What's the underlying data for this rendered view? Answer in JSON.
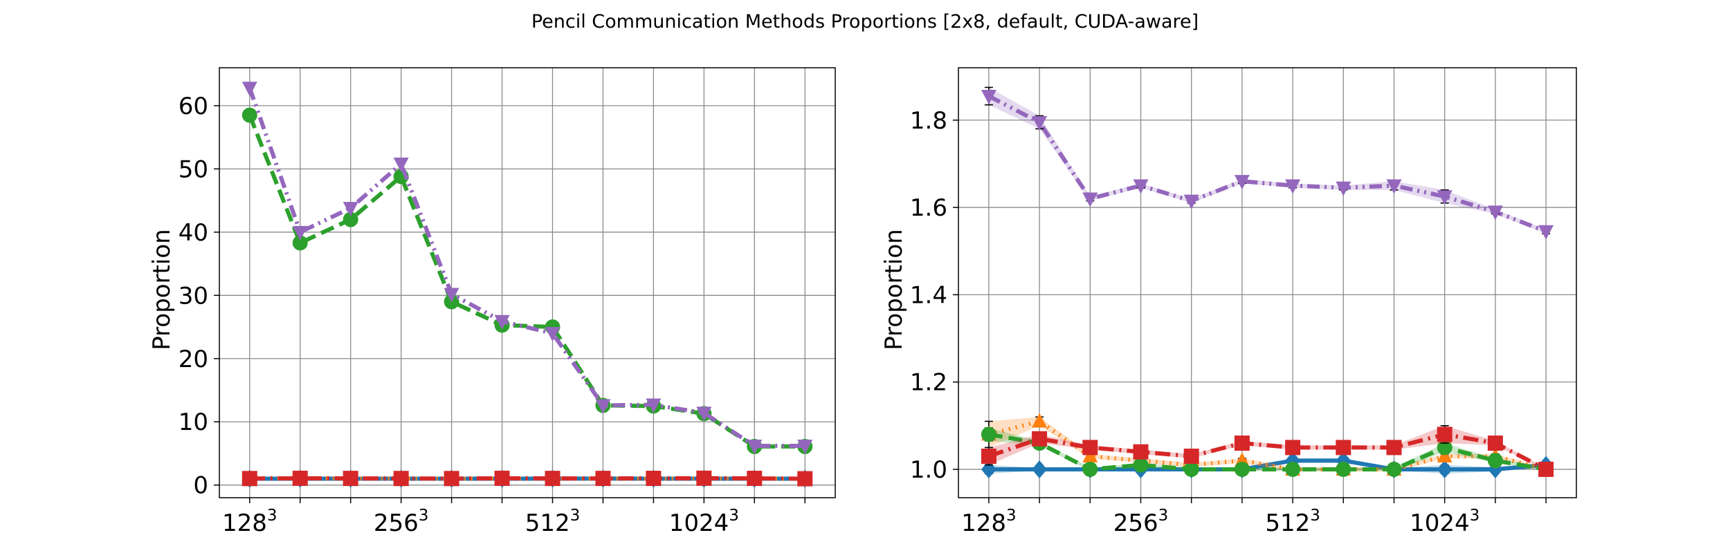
{
  "figure": {
    "title": "Pencil Communication Methods Proportions [2x8, default, CUDA-aware]"
  },
  "chart_data": [
    {
      "type": "line",
      "ylabel": "Proportion",
      "xlabel": "",
      "grid": true,
      "x": [
        0,
        1,
        2,
        3,
        4,
        5,
        6,
        7,
        8,
        9,
        10,
        11
      ],
      "xlim": [
        -0.6,
        11.6
      ],
      "ylim": [
        -2,
        66
      ],
      "yticks": [
        0,
        10,
        20,
        30,
        40,
        50,
        60
      ],
      "xticks": [
        {
          "pos": 0,
          "label": "128",
          "exp": "3"
        },
        {
          "pos": 3,
          "label": "256",
          "exp": "3"
        },
        {
          "pos": 6,
          "label": "512",
          "exp": "3"
        },
        {
          "pos": 9,
          "label": "1024",
          "exp": "3"
        }
      ],
      "series": [
        {
          "color": "#1f77b4",
          "marker": "diamond",
          "dash": "solid",
          "band": false,
          "values": [
            1.0,
            1.0,
            1.0,
            1.0,
            1.0,
            1.0,
            1.02,
            1.02,
            1.0,
            1.0,
            1.0,
            1.01
          ]
        },
        {
          "color": "#ff7f0e",
          "marker": "triangle-up",
          "dash": "dotted",
          "band": false,
          "values": [
            1.08,
            1.1,
            1.03,
            1.02,
            1.01,
            1.02,
            1.0,
            1.0,
            1.0,
            1.03,
            1.03,
            1.0
          ]
        },
        {
          "color": "#2ca02c",
          "marker": "circle",
          "dash": "dashed",
          "band": false,
          "values": [
            58.5,
            38.3,
            42.0,
            48.8,
            29.0,
            25.3,
            25.0,
            12.6,
            12.5,
            11.3,
            6.1,
            6.1
          ]
        },
        {
          "color": "#d62728",
          "marker": "square",
          "dash": "dashdot",
          "band": false,
          "values": [
            1.03,
            1.07,
            1.05,
            1.04,
            1.03,
            1.07,
            1.05,
            1.05,
            1.06,
            1.08,
            1.06,
            1.0
          ]
        },
        {
          "color": "#9467bd",
          "marker": "triangle-down",
          "dash": "dashdotdot",
          "band": false,
          "values": [
            62.8,
            40.0,
            43.8,
            50.8,
            30.2,
            25.9,
            24.0,
            12.6,
            12.7,
            11.4,
            6.2,
            6.2
          ]
        }
      ]
    },
    {
      "type": "line",
      "ylabel": "Proportion",
      "xlabel": "",
      "grid": true,
      "x": [
        0,
        1,
        2,
        3,
        4,
        5,
        6,
        7,
        8,
        9,
        10,
        11
      ],
      "xlim": [
        -0.6,
        11.6
      ],
      "ylim": [
        0.935,
        1.92
      ],
      "yticks": [
        1.0,
        1.2,
        1.4,
        1.6,
        1.8
      ],
      "ytick_labels": [
        "1.0",
        "1.2",
        "1.4",
        "1.6",
        "1.8"
      ],
      "xticks": [
        {
          "pos": 0,
          "label": "128",
          "exp": "3"
        },
        {
          "pos": 3,
          "label": "256",
          "exp": "3"
        },
        {
          "pos": 6,
          "label": "512",
          "exp": "3"
        },
        {
          "pos": 9,
          "label": "1024",
          "exp": "3"
        }
      ],
      "series": [
        {
          "color": "#1f77b4",
          "marker": "diamond",
          "dash": "solid",
          "band": true,
          "values": [
            1.0,
            1.0,
            1.0,
            1.0,
            1.0,
            1.0,
            1.02,
            1.02,
            1.0,
            1.0,
            1.0,
            1.01
          ],
          "err": [
            0.01,
            0.003,
            0.003,
            0.003,
            0.003,
            0.003,
            0.005,
            0.005,
            0.003,
            0.01,
            0.005,
            0.003
          ]
        },
        {
          "color": "#ff7f0e",
          "marker": "triangle-up",
          "dash": "dotted",
          "band": true,
          "values": [
            1.08,
            1.11,
            1.03,
            1.02,
            1.01,
            1.02,
            1.0,
            1.0,
            1.0,
            1.03,
            1.03,
            1.0
          ],
          "err": [
            0.03,
            0.01,
            0.005,
            0.005,
            0.005,
            0.005,
            0.005,
            0.005,
            0.005,
            0.005,
            0.005,
            0.003
          ]
        },
        {
          "color": "#2ca02c",
          "marker": "circle",
          "dash": "dashed",
          "band": true,
          "values": [
            1.08,
            1.06,
            1.0,
            1.01,
            1.0,
            1.0,
            1.0,
            1.0,
            1.0,
            1.05,
            1.02,
            1.0
          ],
          "err": [
            0.015,
            0.005,
            0.004,
            0.004,
            0.004,
            0.004,
            0.004,
            0.004,
            0.004,
            0.01,
            0.005,
            0.003
          ]
        },
        {
          "color": "#d62728",
          "marker": "square",
          "dash": "dashdot",
          "band": true,
          "values": [
            1.03,
            1.07,
            1.05,
            1.04,
            1.03,
            1.06,
            1.05,
            1.05,
            1.05,
            1.08,
            1.06,
            1.0
          ],
          "err": [
            0.02,
            0.01,
            0.005,
            0.005,
            0.005,
            0.005,
            0.005,
            0.005,
            0.005,
            0.02,
            0.005,
            0.003
          ]
        },
        {
          "color": "#9467bd",
          "marker": "triangle-down",
          "dash": "dashdotdot",
          "band": true,
          "values": [
            1.855,
            1.795,
            1.62,
            1.65,
            1.615,
            1.66,
            1.65,
            1.645,
            1.65,
            1.625,
            1.59,
            1.545
          ],
          "err": [
            0.02,
            0.015,
            0.005,
            0.005,
            0.005,
            0.005,
            0.005,
            0.005,
            0.01,
            0.015,
            0.005,
            0.005
          ]
        }
      ]
    }
  ]
}
